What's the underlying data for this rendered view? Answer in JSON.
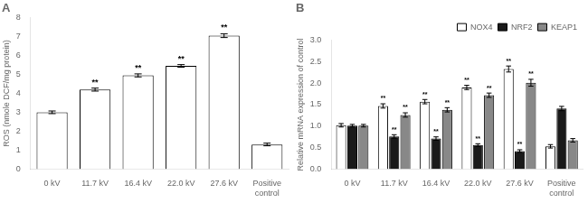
{
  "chart_data": [
    {
      "type": "bar",
      "title": "A",
      "categories": [
        "0 kV",
        "11.7 kV",
        "16.4 kV",
        "22.0 kV",
        "27.6 kV",
        "Positive\ncontrol"
      ],
      "values": [
        3.0,
        4.2,
        4.95,
        5.45,
        7.05,
        1.3
      ],
      "errors": [
        0.07,
        0.08,
        0.08,
        0.07,
        0.1,
        0.07
      ],
      "color": "#ffffff",
      "ylabel": "ROS (nmole DCF/mg protein)",
      "ylim": [
        0,
        8
      ],
      "yticks": [
        0,
        1,
        2,
        3,
        4,
        5,
        6,
        7,
        8
      ],
      "grid": false,
      "annotations": [
        {
          "category": "11.7 kV",
          "text": "**"
        },
        {
          "category": "16.4 kV",
          "text": "**"
        },
        {
          "category": "22.0 kV",
          "text": "**"
        },
        {
          "category": "27.6 kV",
          "text": "**"
        }
      ]
    },
    {
      "type": "bar",
      "title": "B",
      "categories": [
        "0 kV",
        "11.7 kV",
        "16.4 kV",
        "22.0 kV",
        "27.6 kV",
        "Positive\ncontrol"
      ],
      "ylabel": "Relative mRNA expression of control",
      "ylim": [
        0,
        3
      ],
      "yticks": [
        {
          "value": 0,
          "label": "0.0"
        },
        0.5,
        {
          "value": 1,
          "label": "1.0"
        },
        1.5,
        {
          "value": 2,
          "label": "2.0"
        },
        2.5,
        {
          "value": 3,
          "label": "3.0"
        }
      ],
      "series": [
        {
          "name": "NOX4",
          "color": "#ffffff",
          "values": [
            1.02,
            1.47,
            1.57,
            1.9,
            2.33,
            0.53
          ],
          "errors": [
            0.04,
            0.05,
            0.05,
            0.05,
            0.07,
            0.04
          ]
        },
        {
          "name": "NRF2",
          "color": "#1a1a1a",
          "values": [
            1.01,
            0.76,
            0.71,
            0.56,
            0.42,
            1.41
          ],
          "errors": [
            0.03,
            0.04,
            0.04,
            0.03,
            0.03,
            0.05
          ]
        },
        {
          "name": "KEAP1",
          "color": "#888888",
          "values": [
            1.01,
            1.26,
            1.38,
            1.72,
            2.01,
            0.67
          ],
          "errors": [
            0.03,
            0.05,
            0.05,
            0.05,
            0.08,
            0.04
          ]
        }
      ],
      "legend": "upper right",
      "grid": false,
      "annotations": [
        {
          "series": "NOX4",
          "category": "11.7 kV",
          "text": "**"
        },
        {
          "series": "NOX4",
          "category": "16.4 kV",
          "text": "**"
        },
        {
          "series": "NOX4",
          "category": "22.0 kV",
          "text": "**"
        },
        {
          "series": "NOX4",
          "category": "27.6 kV",
          "text": "**"
        },
        {
          "series": "NRF2",
          "category": "11.7 kV",
          "text": "**"
        },
        {
          "series": "NRF2",
          "category": "16.4 kV",
          "text": "**"
        },
        {
          "series": "NRF2",
          "category": "22.0 kV",
          "text": "**"
        },
        {
          "series": "NRF2",
          "category": "27.6 kV",
          "text": "**"
        },
        {
          "series": "KEAP1",
          "category": "11.7 kV",
          "text": "**"
        },
        {
          "series": "KEAP1",
          "category": "16.4 kV",
          "text": "**"
        },
        {
          "series": "KEAP1",
          "category": "22.0 kV",
          "text": "**"
        },
        {
          "series": "KEAP1",
          "category": "27.6 kV",
          "text": "**"
        }
      ]
    }
  ]
}
